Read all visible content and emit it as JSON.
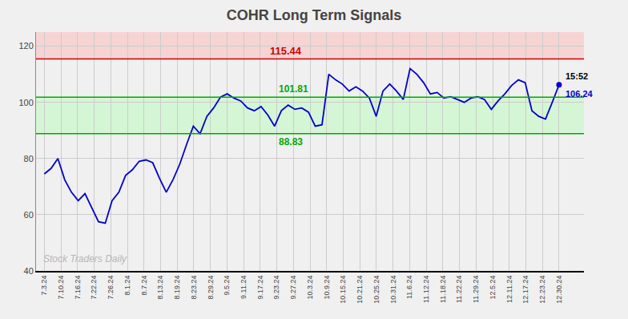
{
  "chart_data": {
    "type": "line",
    "title": "COHR Long Term Signals",
    "values": [
      74.5,
      76.5,
      80.0,
      72.5,
      68.0,
      65.0,
      67.5,
      62.5,
      57.5,
      57.0,
      65.0,
      68.0,
      74.0,
      76.0,
      79.0,
      79.5,
      78.5,
      73.0,
      68.0,
      72.5,
      78.0,
      85.0,
      91.5,
      88.83,
      95.0,
      98.0,
      101.81,
      103.0,
      101.5,
      100.5,
      98.0,
      97.0,
      98.5,
      95.5,
      91.5,
      97.0,
      99.0,
      97.5,
      98.0,
      96.5,
      91.5,
      92.0,
      110.0,
      108.0,
      106.5,
      104.0,
      105.5,
      104.0,
      101.5,
      95.0,
      104.0,
      106.5,
      104.0,
      101.0,
      112.0,
      110.0,
      107.0,
      103.0,
      103.5,
      101.5,
      102.0,
      101.0,
      100.0,
      101.5,
      102.0,
      101.0,
      97.5,
      100.5,
      103.0,
      106.0,
      108.0,
      107.0,
      97.0,
      95.0,
      94.0,
      100.0,
      106.24
    ],
    "color": "#0000cc",
    "background_color": "#f0f0f0",
    "xlim": [
      -0.5,
      32.5
    ],
    "xticks": [
      {
        "value": 0,
        "label": "7.3.24"
      },
      {
        "value": 1,
        "label": "7.10.24"
      },
      {
        "value": 2,
        "label": "7.16.24"
      },
      {
        "value": 3,
        "label": "7.22.24"
      },
      {
        "value": 4,
        "label": "7.26.24"
      },
      {
        "value": 5,
        "label": "8.1.24"
      },
      {
        "value": 6,
        "label": "8.7.24"
      },
      {
        "value": 7,
        "label": "8.13.24"
      },
      {
        "value": 8,
        "label": "8.19.24"
      },
      {
        "value": 9,
        "label": "8.23.24"
      },
      {
        "value": 10,
        "label": "8.29.24"
      },
      {
        "value": 11,
        "label": "9.5.24"
      },
      {
        "value": 12,
        "label": "9.11.24"
      },
      {
        "value": 13,
        "label": "9.17.24"
      },
      {
        "value": 14,
        "label": "9.23.24"
      },
      {
        "value": 15,
        "label": "9.27.24"
      },
      {
        "value": 16,
        "label": "10.3.24"
      },
      {
        "value": 17,
        "label": "10.9.24"
      },
      {
        "value": 18,
        "label": "10.15.24"
      },
      {
        "value": 19,
        "label": "10.21.24"
      },
      {
        "value": 20,
        "label": "10.25.24"
      },
      {
        "value": 21,
        "label": "10.31.24"
      },
      {
        "value": 22,
        "label": "11.6.24"
      },
      {
        "value": 23,
        "label": "11.12.24"
      },
      {
        "value": 24,
        "label": "11.18.24"
      },
      {
        "value": 25,
        "label": "11.22.24"
      },
      {
        "value": 26,
        "label": "11.29.24"
      },
      {
        "value": 27,
        "label": "12.5.24"
      },
      {
        "value": 28,
        "label": "12.11.24"
      },
      {
        "value": 29,
        "label": "12.17.24"
      },
      {
        "value": 30,
        "label": "12.23.24"
      },
      {
        "value": 31,
        "label": "12.30.24"
      }
    ],
    "ylim": [
      40,
      125
    ],
    "yticks": [
      40,
      60,
      80,
      100,
      120
    ],
    "grid": true,
    "bands": [
      {
        "lower": 115.44,
        "upper": 125,
        "color": "#ffaaaa"
      },
      {
        "lower": 88.83,
        "upper": 101.81,
        "color": "#aaffaa"
      }
    ],
    "lines": [
      {
        "value": 115.44,
        "label": "115.44",
        "color": "#cc0000"
      },
      {
        "value": 101.81,
        "label": "101.81",
        "color": "#00aa00"
      },
      {
        "value": 88.83,
        "label": "88.83",
        "color": "#00aa00"
      }
    ],
    "last_point": {
      "value": 106.24,
      "label": "106.24",
      "time": "15:52"
    },
    "annotations": [
      {
        "text": "Stock Traders Daily",
        "color": "#aaaaaa"
      }
    ]
  }
}
